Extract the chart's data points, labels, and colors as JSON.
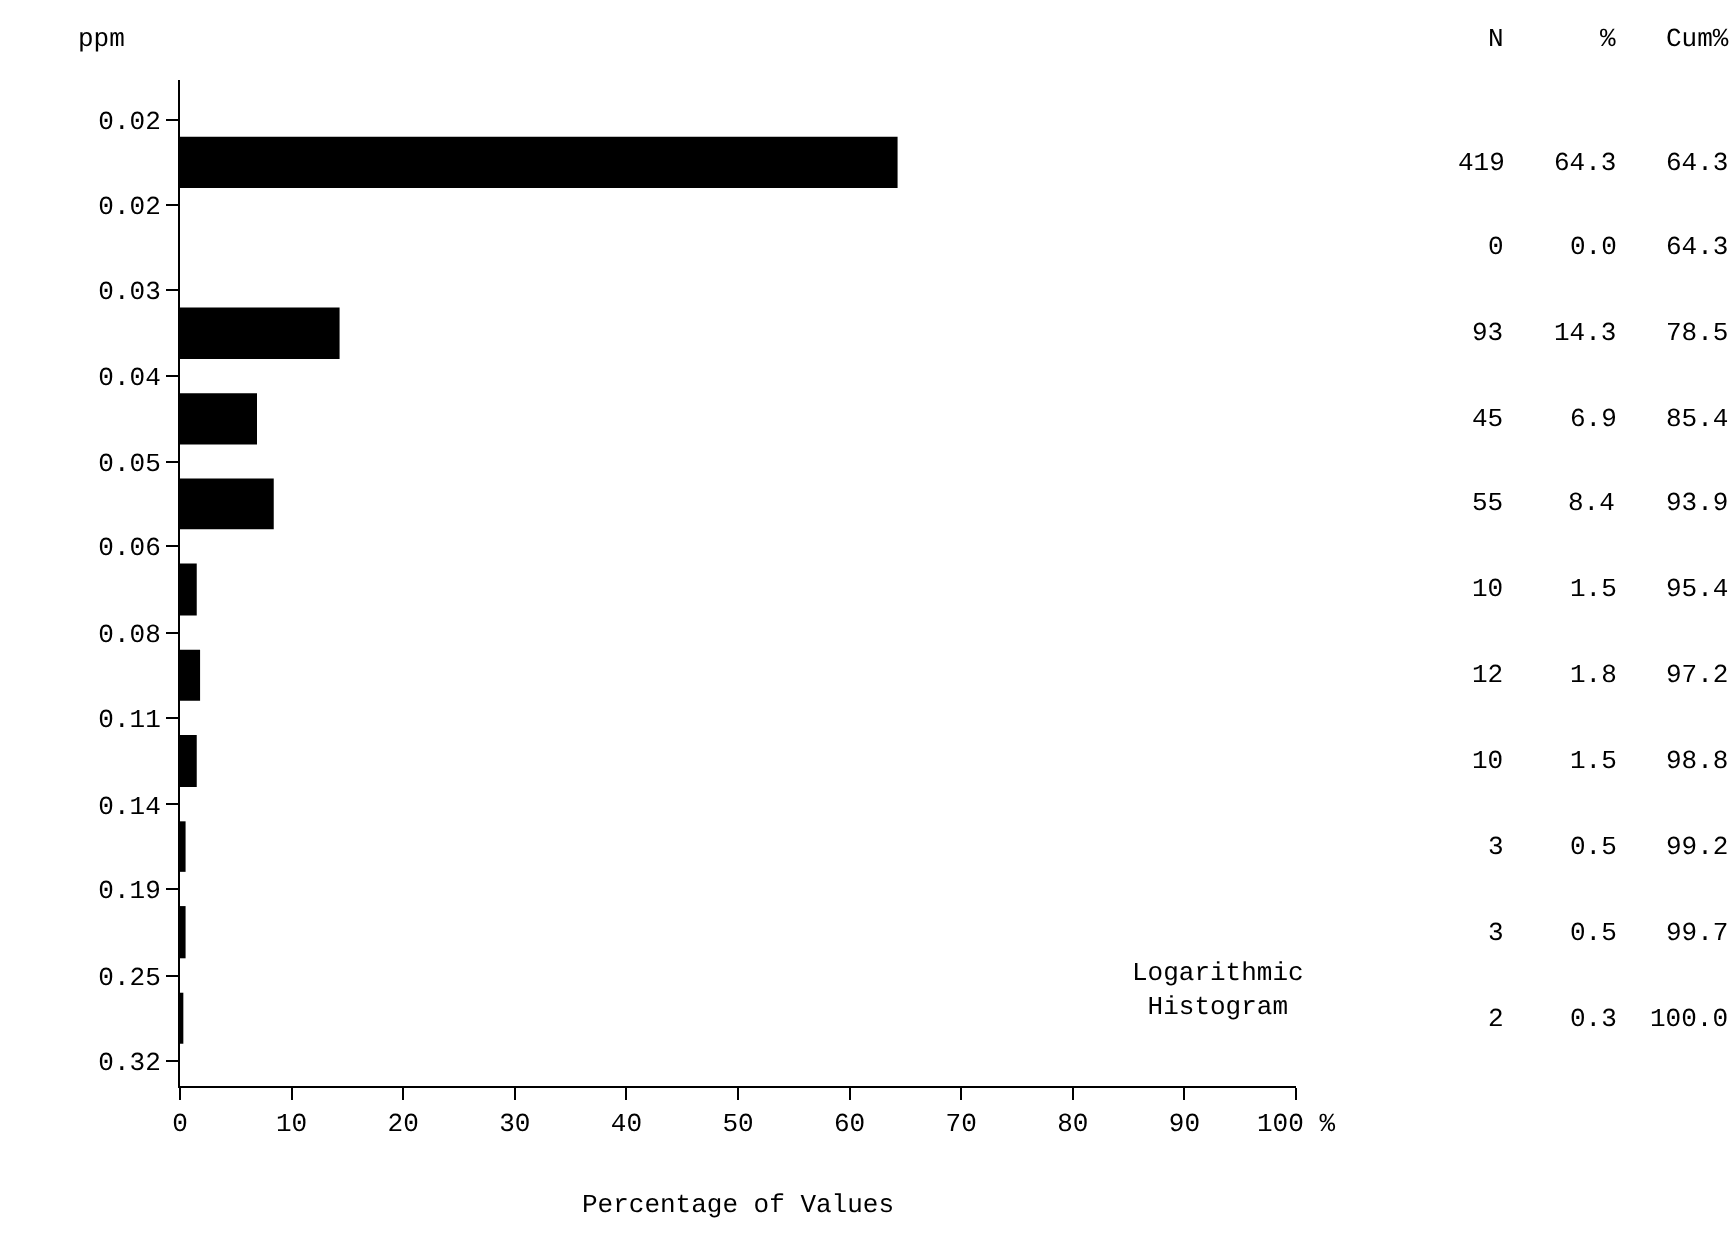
{
  "chart_data": {
    "type": "histogram",
    "orientation": "horizontal",
    "log": "y",
    "ylabel": "ppm",
    "xlabel": "Percentage of Values",
    "bins": [
      0.0172,
      0.0224,
      0.0292,
      0.0381,
      0.0497,
      0.0646,
      0.0845,
      0.11,
      0.144,
      0.187,
      0.245,
      0.319
    ],
    "values": [
      64.3,
      0.0,
      14.3,
      6.9,
      8.4,
      1.5,
      1.8,
      1.5,
      0.5,
      0.5,
      0.3
    ],
    "value_labels": [
      "419 64.3 64.3",
      "0 0.0 64.3",
      "93 14.3 78.5",
      "45 6.9 85.4",
      "55 8.4 93.9",
      "10 1.5 95.4",
      "12 1.8 97.2",
      "10 1.5 98.8",
      "3 0.5 99.2",
      "3 0.5 99.7",
      "2 0.3 100.0"
    ],
    "color": "#000000",
    "xlim": [
      0,
      100
    ],
    "xticks": [
      0,
      10,
      20,
      30,
      40,
      50,
      60,
      70,
      80,
      90,
      {
        "value": 100,
        "label": "100 %"
      }
    ],
    "ylim": [
      0.345,
      0.0152
    ],
    "yticks": [
      {
        "value": 0.0172,
        "label": "0.02"
      },
      {
        "value": 0.0224,
        "label": "0.02"
      },
      {
        "value": 0.0292,
        "label": "0.03"
      },
      {
        "value": 0.0381,
        "label": "0.04"
      },
      {
        "value": 0.0497,
        "label": "0.05"
      },
      {
        "value": 0.0646,
        "label": "0.06"
      },
      {
        "value": 0.0845,
        "label": "0.08"
      },
      {
        "value": 0.11,
        "label": "0.11"
      },
      {
        "value": 0.144,
        "label": "0.14"
      },
      {
        "value": 0.187,
        "label": "0.19"
      },
      {
        "value": 0.245,
        "label": "0.25"
      },
      {
        "value": 0.319,
        "label": "0.32"
      }
    ],
    "annotations": [
      "N",
      "%",
      "Cum%",
      "Logarithmic\nHistogram"
    ]
  }
}
